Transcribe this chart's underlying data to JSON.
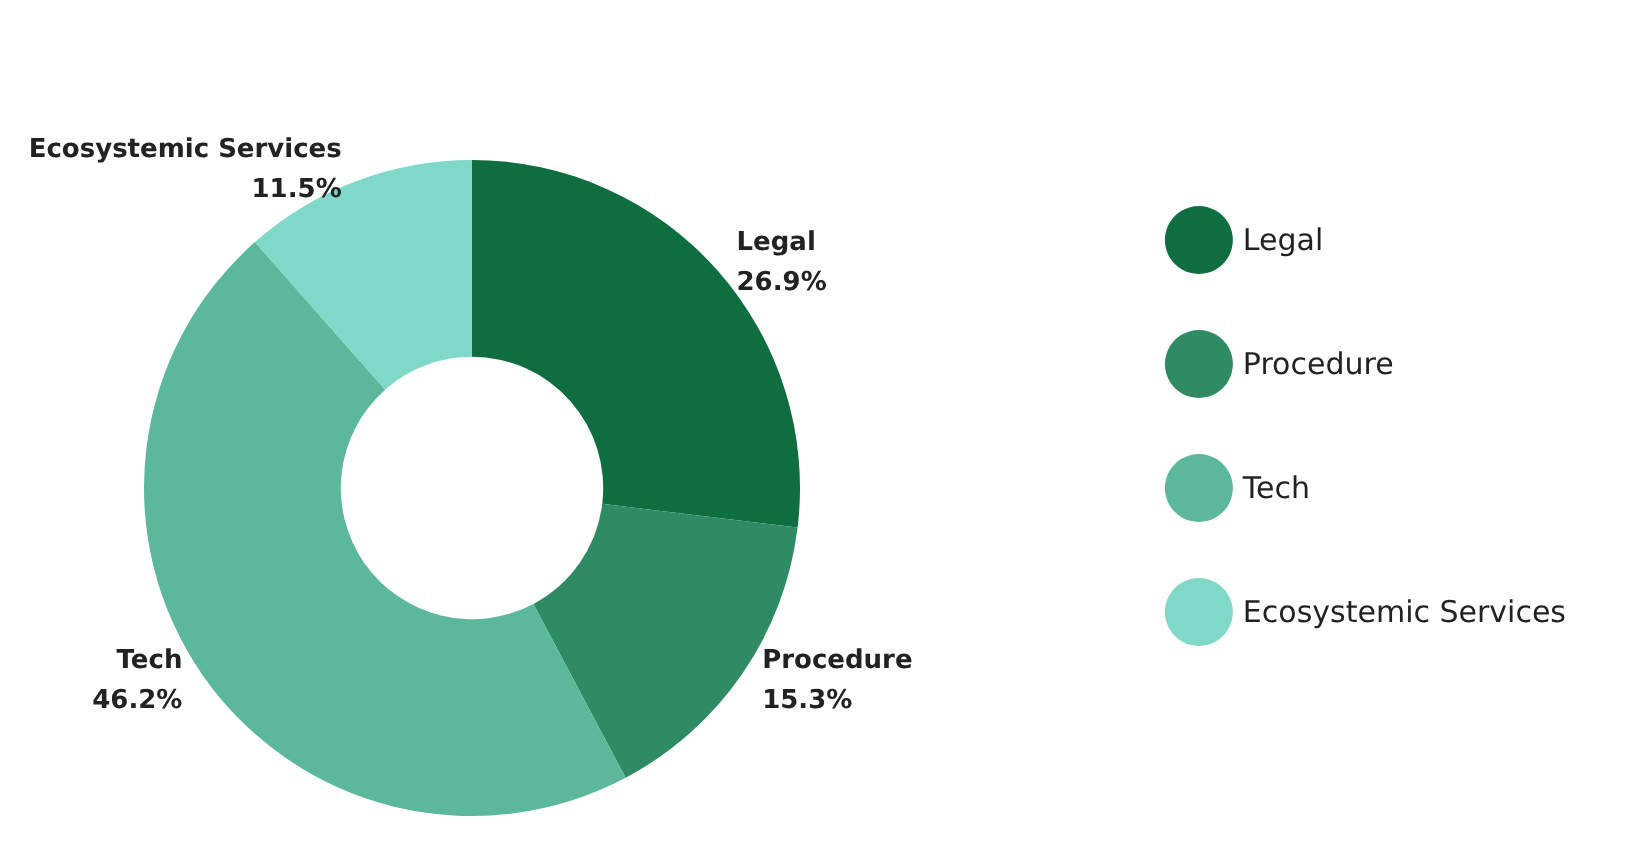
{
  "chart_data": {
    "type": "donut",
    "categories": [
      "Legal",
      "Procedure",
      "Tech",
      "Ecosystemic Services"
    ],
    "values": [
      26.9,
      15.3,
      46.2,
      11.5
    ],
    "value_labels": [
      "26.9%",
      "15.3%",
      "46.2%",
      "11.5%"
    ],
    "colors": [
      "#0f6e3f",
      "#2e8b64",
      "#5cb89a",
      "#7fd8c8"
    ],
    "legend": "right"
  }
}
